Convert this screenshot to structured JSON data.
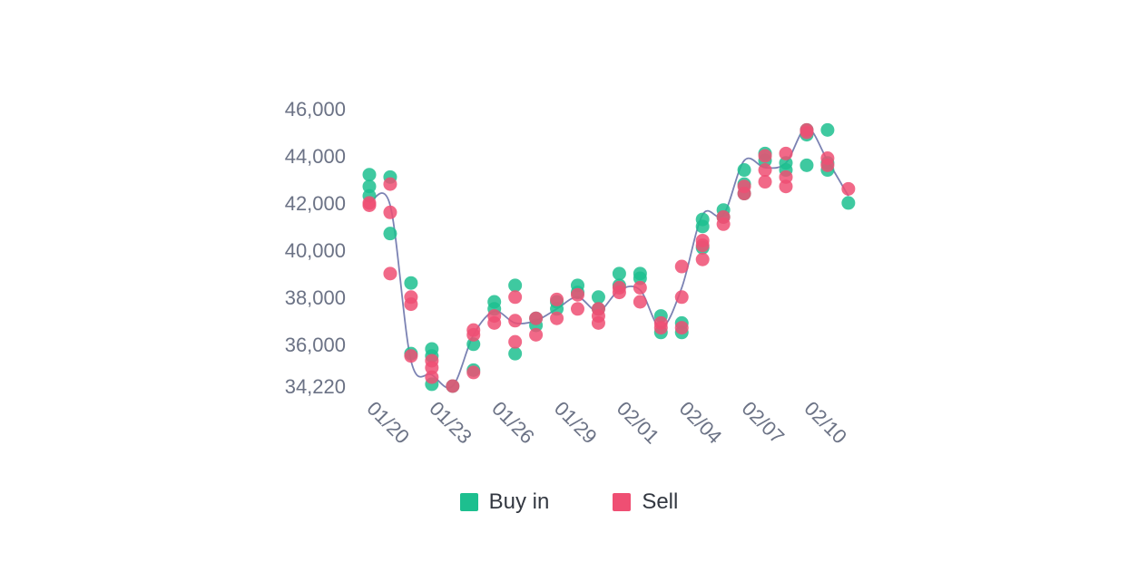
{
  "chart_data": {
    "type": "scatter",
    "title": "",
    "xlabel": "",
    "ylabel": "",
    "ylim": [
      34220,
      46000
    ],
    "yticks": [
      34220,
      36000,
      38000,
      40000,
      42000,
      44000,
      46000
    ],
    "ytick_labels": [
      "34,220",
      "36,000",
      "38,000",
      "40,000",
      "42,000",
      "44,000",
      "46,000"
    ],
    "xlim": [
      0,
      23
    ],
    "x_dates": [
      "01/20",
      "01/21",
      "01/22",
      "01/23",
      "01/24",
      "01/25",
      "01/26",
      "01/27",
      "01/28",
      "01/29",
      "01/30",
      "01/31",
      "02/01",
      "02/02",
      "02/03",
      "02/04",
      "02/05",
      "02/06",
      "02/07",
      "02/08",
      "02/09",
      "02/10",
      "02/11"
    ],
    "xtick_labels": [
      "01/20",
      "01/23",
      "01/26",
      "01/29",
      "02/01",
      "02/04",
      "02/07",
      "02/10"
    ],
    "xtick_index": [
      0,
      3,
      6,
      9,
      12,
      15,
      18,
      21
    ],
    "grid": false,
    "legend_position": "bottom-center",
    "series": [
      {
        "name": "Buy in",
        "color": "#1dbf8f",
        "points": [
          [
            "01/20",
            43200
          ],
          [
            "01/20",
            42700
          ],
          [
            "01/20",
            42300
          ],
          [
            "01/21",
            43100
          ],
          [
            "01/21",
            40700
          ],
          [
            "01/22",
            38600
          ],
          [
            "01/22",
            35600
          ],
          [
            "01/23",
            35800
          ],
          [
            "01/23",
            35500
          ],
          [
            "01/23",
            34300
          ],
          [
            "01/24",
            34220
          ],
          [
            "01/25",
            36000
          ],
          [
            "01/25",
            34900
          ],
          [
            "01/26",
            37800
          ],
          [
            "01/26",
            37500
          ],
          [
            "01/27",
            38500
          ],
          [
            "01/27",
            35600
          ],
          [
            "01/28",
            37100
          ],
          [
            "01/28",
            36800
          ],
          [
            "01/29",
            37800
          ],
          [
            "01/29",
            37500
          ],
          [
            "01/30",
            38500
          ],
          [
            "01/30",
            38200
          ],
          [
            "01/31",
            38000
          ],
          [
            "01/31",
            37500
          ],
          [
            "02/01",
            39000
          ],
          [
            "02/01",
            38500
          ],
          [
            "02/02",
            39000
          ],
          [
            "02/02",
            38800
          ],
          [
            "02/03",
            37200
          ],
          [
            "02/03",
            36500
          ],
          [
            "02/04",
            36500
          ],
          [
            "02/04",
            36900
          ],
          [
            "02/05",
            41300
          ],
          [
            "02/05",
            41000
          ],
          [
            "02/05",
            40100
          ],
          [
            "02/06",
            41700
          ],
          [
            "02/06",
            41400
          ],
          [
            "02/07",
            43400
          ],
          [
            "02/07",
            42800
          ],
          [
            "02/07",
            42400
          ],
          [
            "02/08",
            44100
          ],
          [
            "02/08",
            43800
          ],
          [
            "02/09",
            43700
          ],
          [
            "02/09",
            43400
          ],
          [
            "02/10",
            45100
          ],
          [
            "02/10",
            44900
          ],
          [
            "02/10",
            43600
          ],
          [
            "02/11",
            45100
          ],
          [
            "02/11",
            43700
          ],
          [
            "02/11",
            43400
          ],
          [
            "02/12",
            42000
          ]
        ]
      },
      {
        "name": "Sell",
        "color": "#ef4f73",
        "points": [
          [
            "01/20",
            42000
          ],
          [
            "01/20",
            41900
          ],
          [
            "01/21",
            42800
          ],
          [
            "01/21",
            41600
          ],
          [
            "01/21",
            39000
          ],
          [
            "01/22",
            38000
          ],
          [
            "01/22",
            37700
          ],
          [
            "01/22",
            35500
          ],
          [
            "01/23",
            35300
          ],
          [
            "01/23",
            35000
          ],
          [
            "01/23",
            34600
          ],
          [
            "01/24",
            34220
          ],
          [
            "01/25",
            36600
          ],
          [
            "01/25",
            36400
          ],
          [
            "01/25",
            34800
          ],
          [
            "01/26",
            37200
          ],
          [
            "01/26",
            36900
          ],
          [
            "01/27",
            38000
          ],
          [
            "01/27",
            37000
          ],
          [
            "01/27",
            36100
          ],
          [
            "01/28",
            37100
          ],
          [
            "01/28",
            36400
          ],
          [
            "01/29",
            37900
          ],
          [
            "01/29",
            37100
          ],
          [
            "01/30",
            38100
          ],
          [
            "01/30",
            37500
          ],
          [
            "01/31",
            37500
          ],
          [
            "01/31",
            37200
          ],
          [
            "01/31",
            36900
          ],
          [
            "02/01",
            38400
          ],
          [
            "02/01",
            38200
          ],
          [
            "02/02",
            38400
          ],
          [
            "02/02",
            37800
          ],
          [
            "02/03",
            36900
          ],
          [
            "02/03",
            36700
          ],
          [
            "02/04",
            39300
          ],
          [
            "02/04",
            38000
          ],
          [
            "02/04",
            36700
          ],
          [
            "02/05",
            40400
          ],
          [
            "02/05",
            40200
          ],
          [
            "02/05",
            39600
          ],
          [
            "02/06",
            41400
          ],
          [
            "02/06",
            41100
          ],
          [
            "02/07",
            42700
          ],
          [
            "02/07",
            42400
          ],
          [
            "02/08",
            44000
          ],
          [
            "02/08",
            43400
          ],
          [
            "02/08",
            42900
          ],
          [
            "02/09",
            44100
          ],
          [
            "02/09",
            43100
          ],
          [
            "02/09",
            42700
          ],
          [
            "02/10",
            45100
          ],
          [
            "02/10",
            45000
          ],
          [
            "02/11",
            43900
          ],
          [
            "02/11",
            43600
          ],
          [
            "02/12",
            42600
          ]
        ]
      }
    ],
    "trend_line": {
      "color": "#7b82b3",
      "values": [
        [
          "01/20",
          42000
        ],
        [
          "01/21",
          41900
        ],
        [
          "01/22",
          35300
        ],
        [
          "01/23",
          34700
        ],
        [
          "01/24",
          34220
        ],
        [
          "01/25",
          36400
        ],
        [
          "01/26",
          37400
        ],
        [
          "01/27",
          36900
        ],
        [
          "01/28",
          37000
        ],
        [
          "01/29",
          37500
        ],
        [
          "01/30",
          38000
        ],
        [
          "01/31",
          37400
        ],
        [
          "02/01",
          38300
        ],
        [
          "02/02",
          38300
        ],
        [
          "02/03",
          36700
        ],
        [
          "02/04",
          38400
        ],
        [
          "02/05",
          41500
        ],
        [
          "02/06",
          41500
        ],
        [
          "02/07",
          43800
        ],
        [
          "02/08",
          43500
        ],
        [
          "02/09",
          43700
        ],
        [
          "02/10",
          45200
        ],
        [
          "02/11",
          43800
        ],
        [
          "02/12",
          42300
        ]
      ]
    }
  },
  "legend": {
    "buy_label": "Buy in",
    "sell_label": "Sell",
    "buy_color": "#1dbf8f",
    "sell_color": "#ef4f73"
  }
}
